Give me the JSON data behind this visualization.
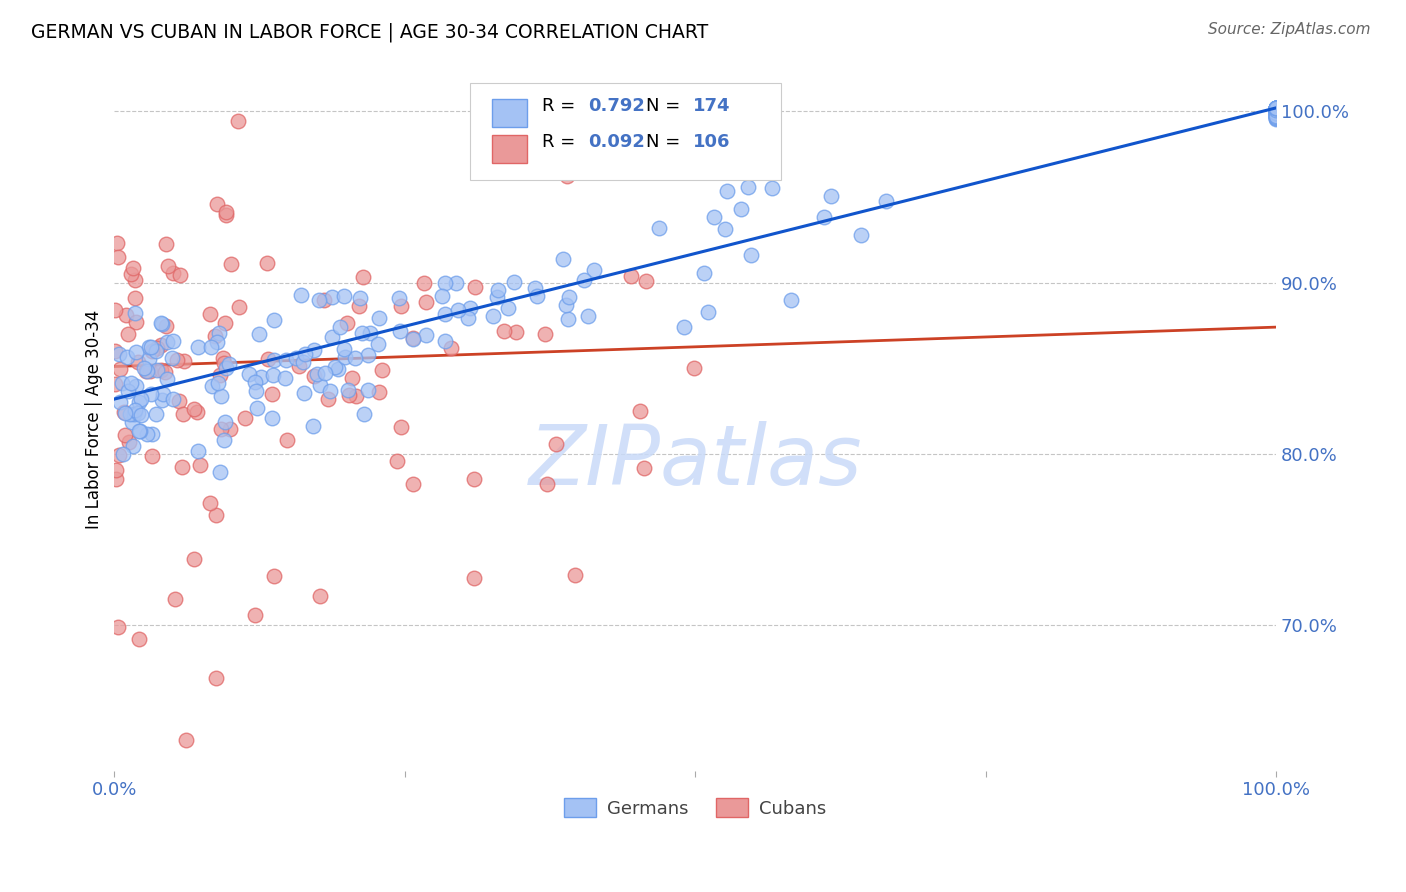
{
  "title": "GERMAN VS CUBAN IN LABOR FORCE | AGE 30-34 CORRELATION CHART",
  "source_text": "Source: ZipAtlas.com",
  "ylabel": "In Labor Force | Age 30-34",
  "xlim": [
    0.0,
    1.0
  ],
  "ylim": [
    0.615,
    1.025
  ],
  "yticks": [
    0.7,
    0.8,
    0.9,
    1.0
  ],
  "ytick_labels": [
    "70.0%",
    "80.0%",
    "90.0%",
    "100.0%"
  ],
  "legend_german_R": "0.792",
  "legend_german_N": "174",
  "legend_cuban_R": "0.092",
  "legend_cuban_N": "106",
  "german_fill_color": "#a4c2f4",
  "german_edge_color": "#6d9eeb",
  "cuban_fill_color": "#ea9999",
  "cuban_edge_color": "#e06666",
  "german_line_color": "#1155cc",
  "cuban_line_color": "#cc4125",
  "watermark_color": "#c9daf8",
  "background_color": "#ffffff",
  "grid_color": "#b7b7b7",
  "title_color": "#000000",
  "tick_label_color": "#4472c4",
  "legend_r_color": "#4472c4",
  "legend_n_color": "#4472c4",
  "legend_text_color": "#000000",
  "source_color": "#666666",
  "german_line_start_y": 0.832,
  "german_line_end_y": 1.002,
  "cuban_line_start_y": 0.851,
  "cuban_line_end_y": 0.874
}
